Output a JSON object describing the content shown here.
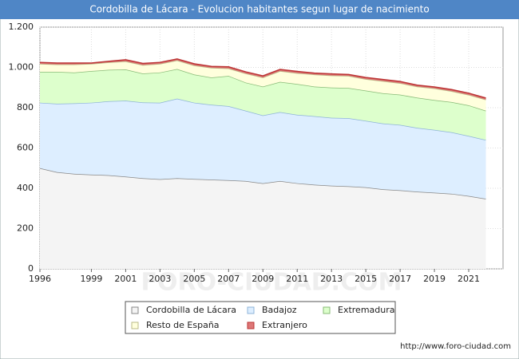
{
  "chart_data": {
    "type": "stacked-area",
    "title": "Cordobilla de Lácara - Evolucion habitantes segun lugar de nacimiento",
    "x": [
      1996,
      1997,
      1998,
      1999,
      2000,
      2001,
      2002,
      2003,
      2004,
      2005,
      2006,
      2007,
      2008,
      2009,
      2010,
      2011,
      2012,
      2013,
      2014,
      2015,
      2016,
      2017,
      2018,
      2019,
      2020,
      2021,
      2022
    ],
    "series": [
      {
        "name": "Cordobilla de Lácara",
        "color": "#f4f4f4",
        "line": "#888888",
        "values": [
          500,
          480,
          472,
          468,
          465,
          458,
          450,
          445,
          450,
          446,
          443,
          440,
          436,
          425,
          436,
          425,
          418,
          413,
          410,
          405,
          395,
          390,
          383,
          378,
          373,
          362,
          348
        ]
      },
      {
        "name": "Badajoz",
        "color": "#ddeeff",
        "line": "#8fb4d8",
        "values": [
          325,
          340,
          350,
          357,
          367,
          377,
          376,
          380,
          395,
          379,
          372,
          368,
          349,
          337,
          342,
          340,
          340,
          337,
          338,
          330,
          327,
          325,
          317,
          312,
          305,
          298,
          292
        ]
      },
      {
        "name": "Extremadura",
        "color": "#ddffcc",
        "line": "#88bb77",
        "values": [
          153,
          158,
          153,
          157,
          156,
          155,
          144,
          150,
          147,
          140,
          135,
          150,
          140,
          143,
          150,
          153,
          147,
          150,
          150,
          150,
          150,
          150,
          150,
          148,
          150,
          152,
          145
        ]
      },
      {
        "name": "Resto de España",
        "color": "#ffffdd",
        "line": "#bbbb88",
        "values": [
          40,
          37,
          40,
          36,
          37,
          40,
          42,
          43,
          43,
          45,
          48,
          37,
          45,
          45,
          54,
          54,
          60,
          60,
          60,
          57,
          60,
          57,
          55,
          58,
          54,
          52,
          55
        ]
      },
      {
        "name": "Extranjero",
        "color": "#dd7777",
        "line": "#bb3333",
        "values": [
          7,
          7,
          7,
          4,
          5,
          8,
          8,
          7,
          7,
          8,
          7,
          8,
          8,
          8,
          8,
          8,
          7,
          8,
          7,
          8,
          8,
          8,
          7,
          7,
          8,
          8,
          8
        ]
      }
    ],
    "xlim": [
      1996,
      2023
    ],
    "xticks": [
      1996,
      1999,
      2001,
      2003,
      2005,
      2007,
      2009,
      2011,
      2013,
      2015,
      2017,
      2019,
      2021
    ],
    "ylim": [
      0,
      1200
    ],
    "yticks": [
      0,
      200,
      400,
      600,
      800,
      {
        "value": 1000,
        "label": "1.000"
      },
      {
        "value": 1200,
        "label": "1.200"
      }
    ],
    "grid": true,
    "watermark": "FORO-CIUDAD.COM",
    "source": "http://www.foro-ciudad.com"
  }
}
